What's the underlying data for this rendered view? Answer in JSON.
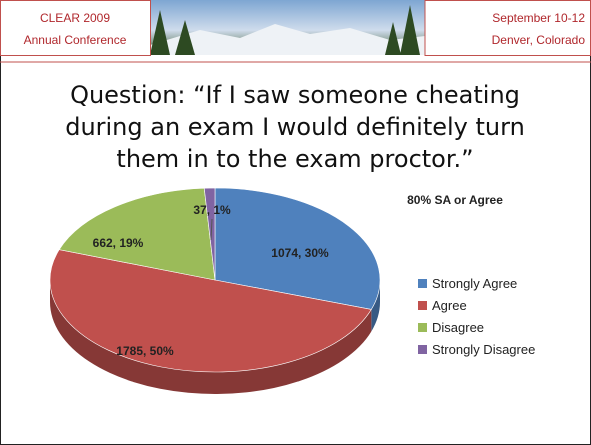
{
  "header": {
    "left": [
      "CLEAR 2009",
      "Annual Conference"
    ],
    "right": [
      "September 10-12",
      "Denver, Colorado"
    ]
  },
  "chart_data": {
    "type": "pie",
    "title": [
      "Question: “If I saw someone cheating",
      "during an exam I would definitely turn",
      "them in to the exam proctor.”"
    ],
    "annotation": "80% SA or Agree",
    "categories": [
      "Strongly Agree",
      "Agree",
      "Disagree",
      "Strongly Disagree"
    ],
    "values": [
      1074,
      1785,
      662,
      37
    ],
    "value_labels": [
      "1074, 30%",
      "1785, 50%",
      "662, 19%",
      "37, 1%"
    ],
    "colors": [
      "#4f81bd",
      "#c0504d",
      "#9bbb59",
      "#8064a2"
    ],
    "legend": "right"
  }
}
